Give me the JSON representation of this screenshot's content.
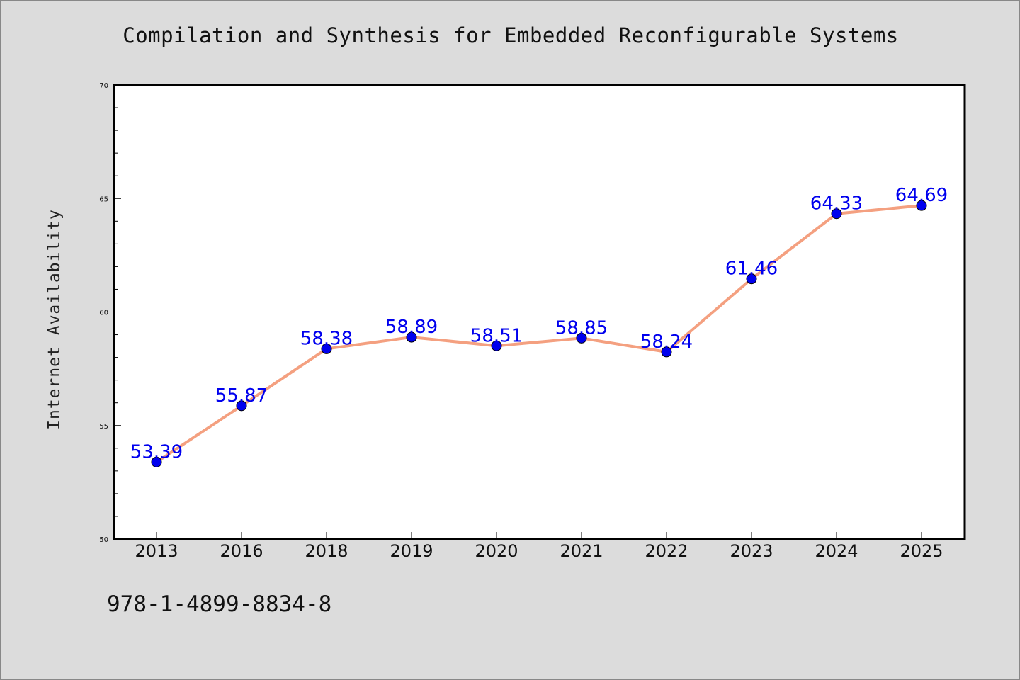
{
  "chart_data": {
    "type": "line",
    "title": "Compilation and Synthesis for Embedded Reconfigurable Systems",
    "xlabel": "",
    "ylabel": "Internet Availability",
    "categories": [
      "2013",
      "2016",
      "2018",
      "2019",
      "2020",
      "2021",
      "2022",
      "2023",
      "2024",
      "2025"
    ],
    "series": [
      {
        "values": [
          53.39,
          55.87,
          58.38,
          58.89,
          58.51,
          58.85,
          58.24,
          61.46,
          64.33,
          64.69
        ],
        "line_color": "#f4a080",
        "marker_color": "#0000ee"
      }
    ],
    "data_labels": [
      "53.39",
      "55.87",
      "58.38",
      "58.89",
      "58.51",
      "58.85",
      "58.24",
      "61.46",
      "64.33",
      "64.69"
    ],
    "ylim": [
      50,
      70
    ],
    "y_ticks": [
      "50",
      "55",
      "60",
      "65",
      "70"
    ],
    "grid": false,
    "legend": "none"
  },
  "footer_code": "978-1-4899-8834-8",
  "colors": {
    "background": "#dcdcdc",
    "plot_area": "#ffffff",
    "line": "#f4a080",
    "marker": "#0000ee",
    "label": "#0000ee"
  }
}
